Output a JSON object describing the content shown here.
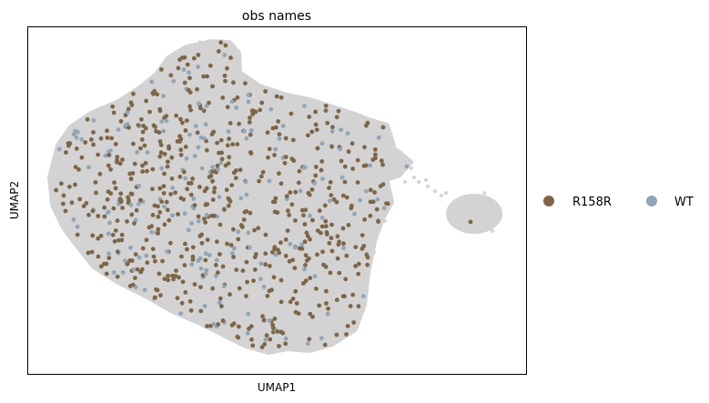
{
  "chart_data": {
    "type": "scatter",
    "title": "obs names",
    "xlabel": "UMAP1",
    "ylabel": "UMAP2",
    "xticks": [],
    "yticks": [],
    "grid": false,
    "legend_placement": "right",
    "background_color": "#d3d3d3",
    "series": [
      {
        "name": "R158R",
        "color": "#7f6545"
      },
      {
        "name": "WT",
        "color": "#8fa6b8"
      }
    ]
  }
}
